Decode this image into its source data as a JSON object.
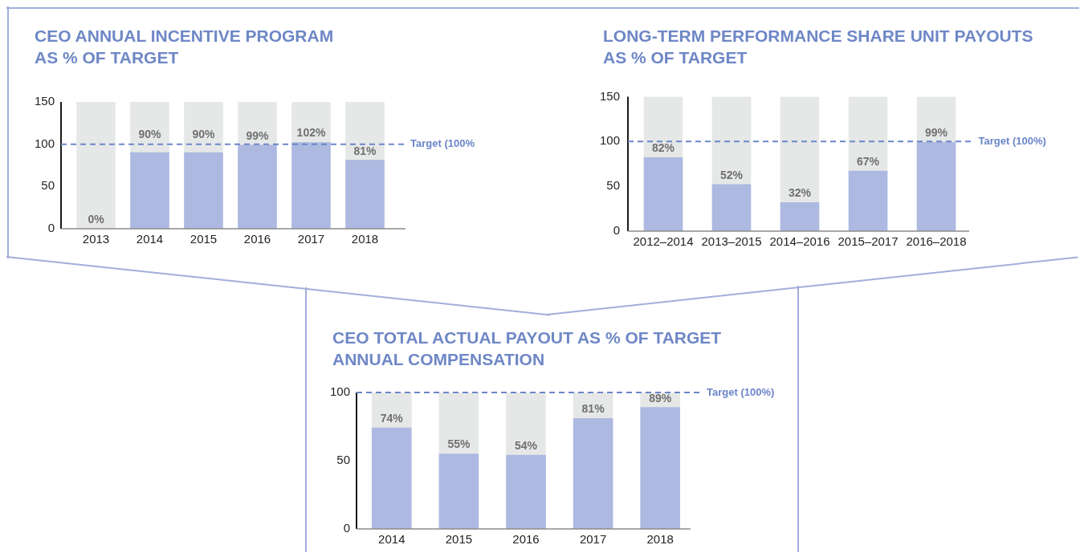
{
  "chart_data": [
    {
      "type": "bar",
      "title": "CEO ANNUAL INCENTIVE PROGRAM AS % OF TARGET",
      "categories": [
        "2013",
        "2014",
        "2015",
        "2016",
        "2017",
        "2018"
      ],
      "stacked": true,
      "series": [
        {
          "color": "#adb9e0",
          "values": [
            0,
            90,
            90,
            99,
            102,
            81
          ],
          "value_labels": [
            "0%",
            "90%",
            "90%",
            "99%",
            "102%",
            "81%"
          ]
        },
        {
          "color": "#e6e8e8",
          "values": [
            150,
            60,
            60,
            51,
            48,
            69
          ]
        }
      ],
      "ylim": [
        0,
        150
      ],
      "yticks": [
        0,
        50,
        100,
        150
      ],
      "ref_lines": [
        {
          "axis": "y",
          "value": 100,
          "label": "Target (100%",
          "color": "#6b86c8",
          "line_style": "dashed"
        }
      ]
    },
    {
      "type": "bar",
      "title": "LONG-TERM PERFORMANCE SHARE UNIT PAYOUTS AS % OF TARGET",
      "categories": [
        "2012–2014",
        "2013–2015",
        "2014–2016",
        "2015–2017",
        "2016–2018"
      ],
      "stacked": true,
      "series": [
        {
          "color": "#adb9e0",
          "values": [
            82,
            52,
            32,
            67,
            99
          ],
          "value_labels": [
            "82%",
            "52%",
            "32%",
            "67%",
            "99%"
          ]
        },
        {
          "color": "#e6e8e8",
          "values": [
            68,
            98,
            118,
            83,
            51
          ]
        }
      ],
      "ylim": [
        0,
        150
      ],
      "yticks": [
        0,
        50,
        100,
        150
      ],
      "ref_lines": [
        {
          "axis": "y",
          "value": 100,
          "label": "Target (100%)",
          "color": "#6b86c8",
          "line_style": "dashed"
        }
      ]
    },
    {
      "type": "bar",
      "title": "CEO TOTAL ACTUAL PAYOUT AS % OF TARGET ANNUAL COMPENSATION",
      "categories": [
        "2014",
        "2015",
        "2016",
        "2017",
        "2018"
      ],
      "stacked": true,
      "series": [
        {
          "color": "#adb9e0",
          "values": [
            74,
            55,
            54,
            81,
            89
          ],
          "value_labels": [
            "74%",
            "55%",
            "54%",
            "81%",
            "89%"
          ]
        },
        {
          "color": "#e6e8e8",
          "values": [
            26,
            45,
            46,
            19,
            11
          ]
        }
      ],
      "ylim": [
        0,
        100
      ],
      "yticks": [
        0,
        50,
        100
      ],
      "ref_lines": [
        {
          "axis": "y",
          "value": 100,
          "label": "Target (100%)",
          "color": "#6b86c8",
          "line_style": "dashed"
        }
      ]
    }
  ]
}
